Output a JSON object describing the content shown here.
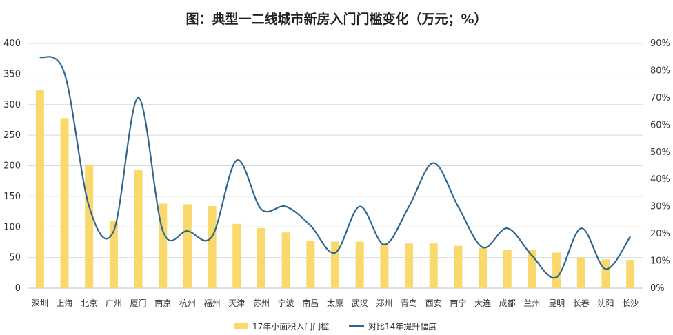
{
  "chart_data": {
    "type": "bar",
    "title": "图：典型一二线城市新房入门门槛变化（万元；%）",
    "categories": [
      "深圳",
      "上海",
      "北京",
      "广州",
      "厦门",
      "南京",
      "杭州",
      "福州",
      "天津",
      "苏州",
      "宁波",
      "南昌",
      "太原",
      "武汉",
      "郑州",
      "青岛",
      "西安",
      "南宁",
      "大连",
      "成都",
      "兰州",
      "昆明",
      "长春",
      "沈阳",
      "长沙"
    ],
    "series": [
      {
        "name": "17年小面积入门门槛",
        "type": "bar",
        "axis": "left",
        "color": "#F9D86C",
        "values": [
          324,
          278,
          202,
          110,
          194,
          138,
          137,
          134,
          105,
          98,
          91,
          77,
          76,
          76,
          74,
          73,
          73,
          69,
          66,
          63,
          62,
          58,
          50,
          47,
          46
        ]
      },
      {
        "name": "对比14年提升幅度",
        "type": "line",
        "axis": "right",
        "unit": "%",
        "color": "#2F6690",
        "values": [
          85,
          79,
          30,
          21,
          70,
          21,
          21,
          19,
          47,
          29,
          30,
          23,
          13,
          30,
          16,
          30,
          46,
          30,
          15,
          22,
          12,
          4,
          22,
          7,
          19
        ]
      }
    ],
    "y_left": {
      "min": 0,
      "max": 400,
      "step": 50,
      "ticks": [
        "0",
        "50",
        "100",
        "150",
        "200",
        "250",
        "300",
        "350",
        "400"
      ]
    },
    "y_right": {
      "min": 0,
      "max": 90,
      "step": 10,
      "ticks": [
        "0%",
        "10%",
        "20%",
        "30%",
        "40%",
        "50%",
        "60%",
        "70%",
        "80%",
        "90%"
      ]
    },
    "grid": true,
    "legend": {
      "position": "bottom",
      "items": [
        "17年小面积入门门槛",
        "对比14年提升幅度"
      ]
    }
  }
}
